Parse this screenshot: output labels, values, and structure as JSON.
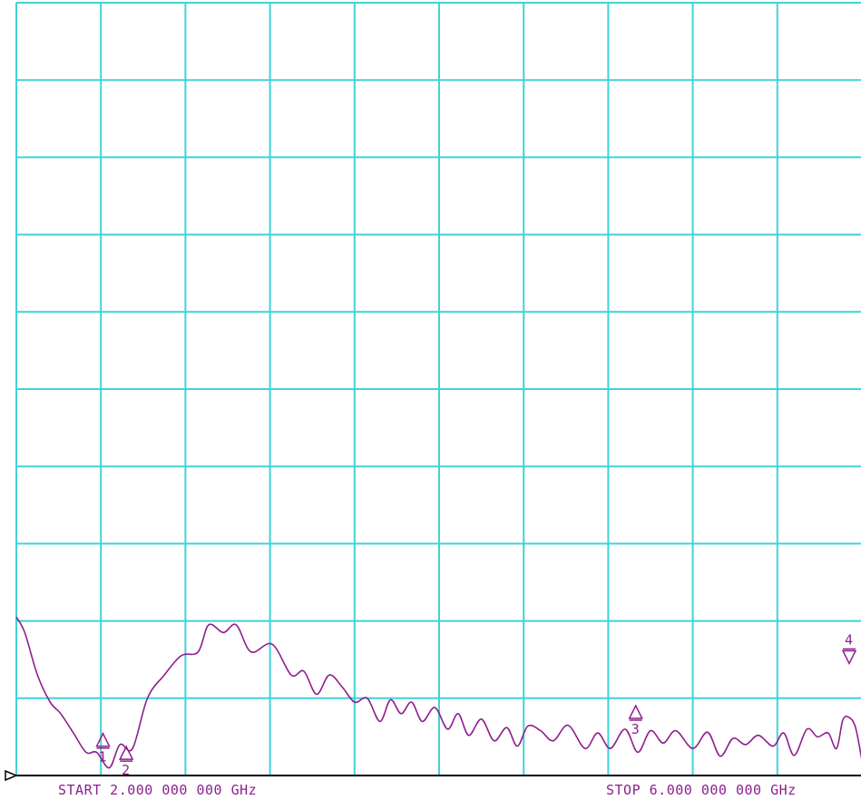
{
  "colors": {
    "grid": "#3fd3d8",
    "trace": "#8e1e8e",
    "background": "#ffffff",
    "baseline": "#000000"
  },
  "chart_data": {
    "type": "line",
    "x_unit": "GHz",
    "xlim": [
      2.0,
      6.0
    ],
    "ylim": [
      0,
      10
    ],
    "grid": true,
    "gridlines": {
      "x": 10,
      "y": 10
    },
    "start_label": "START 2.000 000 000 GHz",
    "stop_label": "STOP 6.000 000 000 GHz",
    "series": [
      {
        "x": [
          2.0,
          2.04,
          2.1,
          2.16,
          2.21,
          2.27,
          2.33,
          2.38,
          2.44,
          2.49,
          2.55,
          2.62,
          2.7,
          2.78,
          2.86,
          2.91,
          2.98,
          3.04,
          3.11,
          3.21,
          3.3,
          3.36,
          3.42,
          3.48,
          3.54,
          3.6,
          3.66,
          3.72,
          3.77,
          3.82,
          3.87,
          3.92,
          3.98,
          4.04,
          4.09,
          4.14,
          4.2,
          4.26,
          4.32,
          4.37,
          4.42,
          4.48,
          4.54,
          4.61,
          4.69,
          4.75,
          4.81,
          4.88,
          4.94,
          5.0,
          5.06,
          5.12,
          5.2,
          5.27,
          5.33,
          5.39,
          5.45,
          5.51,
          5.58,
          5.63,
          5.68,
          5.74,
          5.79,
          5.84,
          5.88,
          5.91,
          5.94,
          5.97,
          6.0
        ],
        "y": [
          2.05,
          1.85,
          1.3,
          0.95,
          0.8,
          0.55,
          0.3,
          0.3,
          0.1,
          0.4,
          0.35,
          1.0,
          1.3,
          1.55,
          1.6,
          1.95,
          1.85,
          1.95,
          1.6,
          1.7,
          1.3,
          1.35,
          1.05,
          1.3,
          1.15,
          0.95,
          1.0,
          0.7,
          0.98,
          0.8,
          0.95,
          0.7,
          0.88,
          0.6,
          0.8,
          0.52,
          0.73,
          0.45,
          0.62,
          0.38,
          0.64,
          0.58,
          0.45,
          0.65,
          0.35,
          0.55,
          0.35,
          0.6,
          0.3,
          0.58,
          0.42,
          0.58,
          0.35,
          0.56,
          0.25,
          0.48,
          0.4,
          0.52,
          0.38,
          0.55,
          0.26,
          0.6,
          0.5,
          0.55,
          0.35,
          0.72,
          0.75,
          0.62,
          0.2
        ]
      }
    ],
    "markers": [
      {
        "label": "1",
        "x": 2.41,
        "y": 0.52,
        "direction": "up"
      },
      {
        "label": "2",
        "x": 2.52,
        "y": 0.35,
        "direction": "up"
      },
      {
        "label": "3",
        "x": 4.93,
        "y": 0.88,
        "direction": "up"
      },
      {
        "label": "4",
        "x": 5.94,
        "y": 1.45,
        "direction": "down"
      }
    ]
  }
}
